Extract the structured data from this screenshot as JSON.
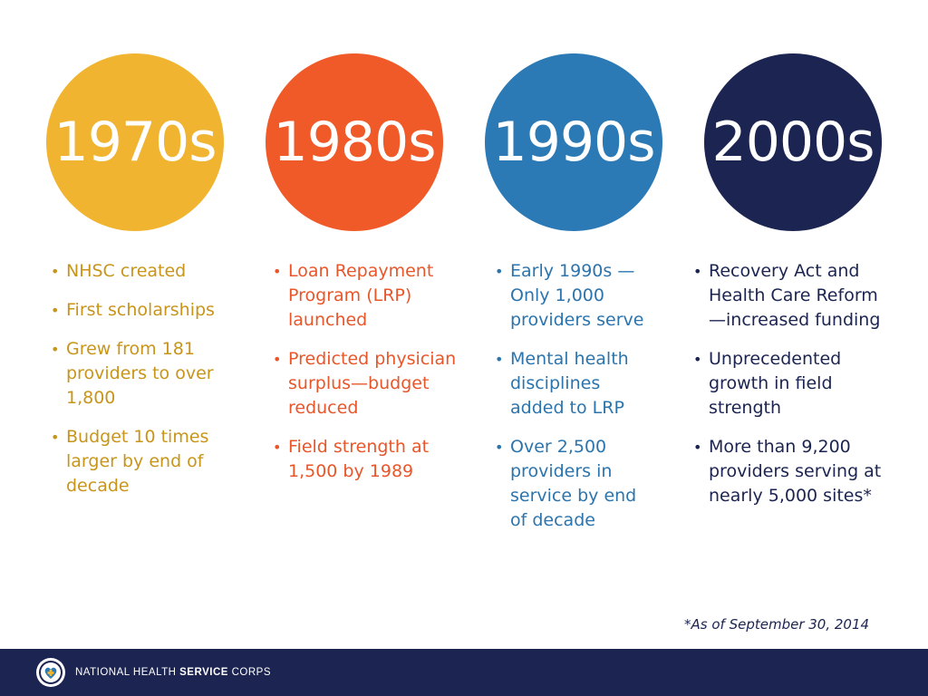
{
  "colors": {
    "c1970s": "#f0b431",
    "c1980s": "#f05a28",
    "c1990s": "#2b79b5",
    "c2000s": "#1c2451",
    "text1970s": "#c8951a",
    "text1980s": "#e8562a",
    "text1990s": "#2b74ad",
    "text2000s": "#1c2451"
  },
  "decades": [
    {
      "label": "1970s",
      "bullets": [
        "NHSC created",
        "First scholarships",
        "Grew from 181 providers to over 1,800",
        "Budget 10 times larger by end of decade"
      ]
    },
    {
      "label": "1980s",
      "bullets": [
        "Loan Repayment Program (LRP) launched",
        "Predicted physician surplus—budget reduced",
        "Field strength at 1,500 by 1989"
      ]
    },
    {
      "label": "1990s",
      "bullets": [
        "Early 1990s — Only 1,000 providers serve",
        "Mental health disciplines added to LRP",
        "Over 2,500 providers in service by end of decade"
      ]
    },
    {
      "label": "2000s",
      "bullets": [
        "Recovery Act and Health Care Reform —increased funding",
        "Unprecedented growth in field strength",
        "More than 9,200 providers serving at nearly 5,000 sites*"
      ]
    }
  ],
  "footnote": "*As of September 30, 2014",
  "footer": {
    "brand_light": "NATIONAL HEALTH ",
    "brand_bold": "SERVICE",
    "brand_end": " CORPS",
    "logo_icon": "nhsc-heart-logo"
  }
}
